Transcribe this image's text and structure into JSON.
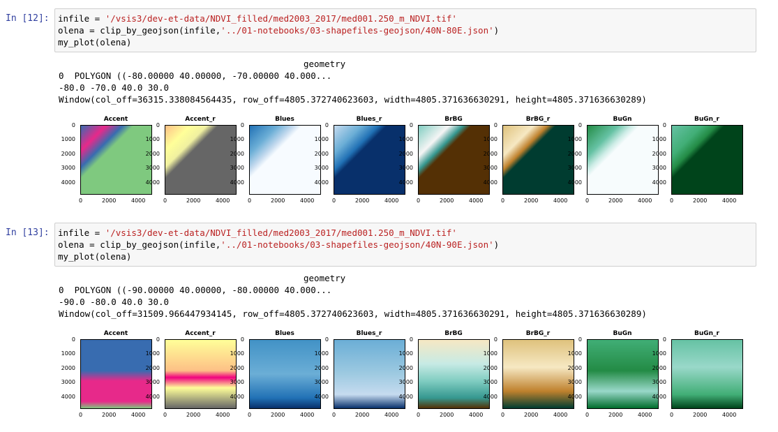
{
  "cells": [
    {
      "prompt": "In [12]:",
      "code": {
        "line1_a": "infile = ",
        "line1_str": "'/vsis3/dev-et-data/NDVI_filled/med2003_2017/med001.250_m_NDVI.tif'",
        "line2_a": "olena = clip_by_geojson(infile,",
        "line2_str": "'../01-notebooks/03-shapefiles-geojson/40N-80E.json'",
        "line2_b": ")",
        "line3": "my_plot(olena)"
      },
      "output": {
        "header": "geometry",
        "row": "0  POLYGON ((-80.00000 40.00000, -70.00000 40.000...",
        "bounds": "-80.0 -70.0 40.0 30.0",
        "window": "Window(col_off=36315.338084564435, row_off=4805.372740623603, width=4805.371636630291, height=4805.371636630289)"
      }
    },
    {
      "prompt": "In [13]:",
      "code": {
        "line1_a": "infile = ",
        "line1_str": "'/vsis3/dev-et-data/NDVI_filled/med2003_2017/med001.250_m_NDVI.tif'",
        "line2_a": "olena = clip_by_geojson(infile,",
        "line2_str": "'../01-notebooks/03-shapefiles-geojson/40N-90E.json'",
        "line2_b": ")",
        "line3": "my_plot(olena)"
      },
      "output": {
        "header": "geometry",
        "row": "0  POLYGON ((-90.00000 40.00000, -80.00000 40.000...",
        "bounds": "-90.0 -80.0 40.0 30.0",
        "window": "Window(col_off=31509.966447934145, row_off=4805.372740623603, width=4805.371636630291, height=4805.371636630289)"
      }
    }
  ],
  "plots": {
    "titles": [
      "Accent",
      "Accent_r",
      "Blues",
      "Blues_r",
      "BrBG",
      "BrBG_r",
      "BuGn",
      "BuGn_r"
    ],
    "yticks": [
      "0",
      "1000",
      "2000",
      "3000",
      "4000"
    ],
    "xticks": [
      "0",
      "2000",
      "4000"
    ]
  }
}
